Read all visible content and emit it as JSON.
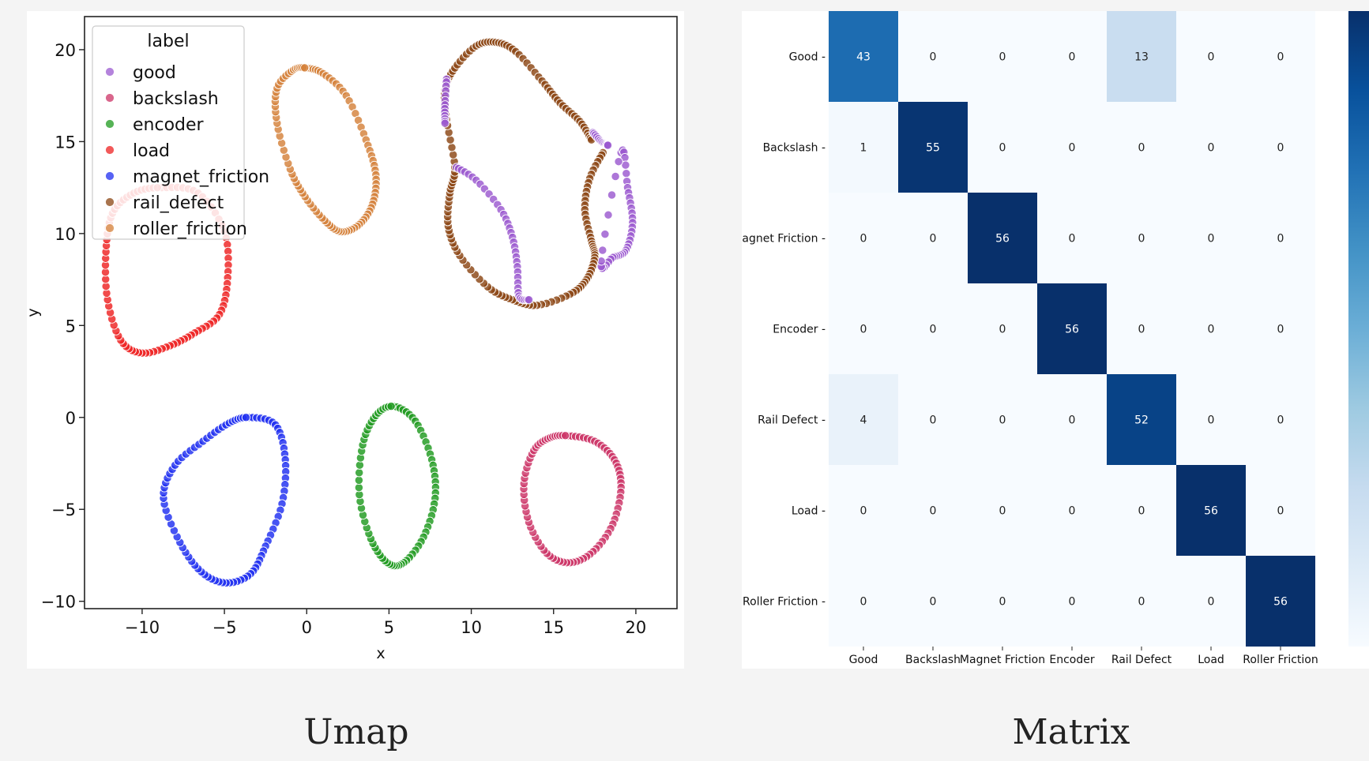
{
  "captions": {
    "left": "Umap",
    "right": "Matrix"
  },
  "chart_data": [
    {
      "type": "scatter",
      "title": "",
      "xlabel": "x",
      "ylabel": "y",
      "xlim": [
        -13.5,
        22.5
      ],
      "ylim": [
        -10.4,
        21.8
      ],
      "xticks": [
        -10,
        -5,
        0,
        5,
        10,
        15,
        20
      ],
      "xtick_labels": [
        "−10",
        "−5",
        "0",
        "5",
        "10",
        "15",
        "20"
      ],
      "yticks": [
        -10,
        -5,
        0,
        5,
        10,
        15,
        20
      ],
      "ytick_labels": [
        "−10",
        "−5",
        "0",
        "5",
        "10",
        "15",
        "20"
      ],
      "grid": false,
      "legend": {
        "title": "label",
        "placement": "top-left"
      },
      "series": [
        {
          "name": "good",
          "color": "#9b59d0",
          "shape": "ring",
          "points": [
            [
              19.1,
              14.4
            ],
            [
              19.5,
              12.5
            ],
            [
              19.8,
              10.6
            ],
            [
              19.4,
              9.1
            ],
            [
              18.6,
              8.7
            ],
            [
              17.9,
              8.5
            ]
          ]
        },
        {
          "name": "backslash",
          "color": "#cc3366",
          "shape": "ring",
          "points": [
            [
              15.9,
              -1.0
            ],
            [
              17.5,
              -1.3
            ],
            [
              18.7,
              -2.3
            ],
            [
              19.1,
              -3.8
            ],
            [
              18.6,
              -5.8
            ],
            [
              17.4,
              -7.3
            ],
            [
              16.0,
              -7.9
            ],
            [
              14.6,
              -7.4
            ],
            [
              13.5,
              -5.7
            ],
            [
              13.2,
              -3.6
            ],
            [
              13.8,
              -1.8
            ],
            [
              14.8,
              -1.1
            ]
          ]
        },
        {
          "name": "encoder",
          "color": "#1e9a1e",
          "shape": "ring",
          "points": [
            [
              5.3,
              0.6
            ],
            [
              6.6,
              -0.2
            ],
            [
              7.6,
              -2.3
            ],
            [
              7.8,
              -4.4
            ],
            [
              7.1,
              -6.5
            ],
            [
              5.9,
              -7.9
            ],
            [
              4.9,
              -7.9
            ],
            [
              3.9,
              -6.6
            ],
            [
              3.2,
              -4.2
            ],
            [
              3.4,
              -1.5
            ],
            [
              4.2,
              0.1
            ]
          ]
        },
        {
          "name": "load",
          "color": "#ee2222",
          "shape": "ring",
          "points": [
            [
              -8.8,
              12.5
            ],
            [
              -6.6,
              12.2
            ],
            [
              -5.0,
              10.1
            ],
            [
              -4.8,
              7.6
            ],
            [
              -5.3,
              5.6
            ],
            [
              -6.8,
              4.6
            ],
            [
              -8.3,
              3.9
            ],
            [
              -10.0,
              3.5
            ],
            [
              -11.3,
              4.2
            ],
            [
              -12.1,
              6.4
            ],
            [
              -12.2,
              9.0
            ],
            [
              -11.8,
              11.1
            ],
            [
              -10.5,
              12.2
            ]
          ]
        },
        {
          "name": "magnet_friction",
          "color": "#1f2ef0",
          "shape": "ring",
          "points": [
            [
              -3.5,
              0.0
            ],
            [
              -1.9,
              -0.4
            ],
            [
              -1.3,
              -2.3
            ],
            [
              -1.5,
              -4.7
            ],
            [
              -2.5,
              -7.0
            ],
            [
              -3.4,
              -8.5
            ],
            [
              -4.9,
              -9.0
            ],
            [
              -6.4,
              -8.4
            ],
            [
              -7.7,
              -6.8
            ],
            [
              -8.7,
              -4.4
            ],
            [
              -8.0,
              -2.6
            ],
            [
              -6.3,
              -1.3
            ],
            [
              -4.7,
              -0.3
            ]
          ]
        },
        {
          "name": "rail_defect",
          "color": "#8b4513",
          "shape": "curve",
          "points": [
            [
              18.0,
              14.4
            ],
            [
              17.2,
              13.0
            ],
            [
              16.9,
              11.3
            ],
            [
              17.3,
              9.6
            ],
            [
              17.5,
              8.7
            ],
            [
              17.0,
              7.5
            ],
            [
              16.0,
              6.7
            ],
            [
              14.0,
              6.1
            ],
            [
              12.5,
              6.4
            ],
            [
              11.0,
              7.1
            ],
            [
              9.3,
              8.8
            ],
            [
              8.6,
              10.4
            ],
            [
              8.7,
              12.2
            ],
            [
              9.0,
              13.6
            ],
            [
              8.5,
              16.2
            ],
            [
              8.4,
              17.8
            ],
            [
              9.0,
              19.0
            ],
            [
              10.3,
              20.2
            ],
            [
              11.5,
              20.4
            ],
            [
              12.7,
              19.9
            ],
            [
              14.3,
              18.3
            ],
            [
              15.4,
              17.1
            ],
            [
              16.6,
              16.1
            ],
            [
              17.3,
              15.1
            ]
          ]
        },
        {
          "name": "roller_friction",
          "color": "#d4813a",
          "shape": "ring",
          "points": [
            [
              0.0,
              19.0
            ],
            [
              1.0,
              18.7
            ],
            [
              2.4,
              17.5
            ],
            [
              3.6,
              15.1
            ],
            [
              4.2,
              13.2
            ],
            [
              4.0,
              11.6
            ],
            [
              3.2,
              10.5
            ],
            [
              2.1,
              10.1
            ],
            [
              1.1,
              10.7
            ],
            [
              -0.1,
              12.0
            ],
            [
              -1.0,
              13.5
            ],
            [
              -1.8,
              16.0
            ],
            [
              -1.8,
              17.9
            ],
            [
              -0.8,
              18.9
            ]
          ]
        }
      ],
      "overlays": [
        {
          "color": "#9b59d0",
          "points": [
            [
              9.1,
              13.6
            ],
            [
              10.3,
              12.9
            ],
            [
              11.8,
              11.3
            ],
            [
              12.5,
              9.8
            ],
            [
              12.8,
              8.2
            ],
            [
              12.9,
              6.6
            ],
            [
              13.5,
              6.4
            ]
          ]
        },
        {
          "color": "#9b59d0",
          "points": [
            [
              8.5,
              18.4
            ],
            [
              8.4,
              17.0
            ],
            [
              8.4,
              16.0
            ]
          ]
        },
        {
          "color": "#9b59d0",
          "points": [
            [
              17.4,
              15.5
            ],
            [
              17.9,
              15.0
            ],
            [
              18.3,
              14.8
            ]
          ]
        }
      ]
    },
    {
      "type": "heatmap",
      "title": "",
      "xlabel": "",
      "ylabel": "",
      "rows": [
        "Good",
        "Backslash",
        "Magnet Friction",
        "Encoder",
        "Rail Defect",
        "Load",
        "Roller Friction"
      ],
      "columns": [
        "Good",
        "Backslash",
        "Magnet Friction",
        "Encoder",
        "Rail Defect",
        "Load",
        "Roller Friction"
      ],
      "values": [
        [
          43,
          0,
          0,
          0,
          13,
          0,
          0
        ],
        [
          1,
          55,
          0,
          0,
          0,
          0,
          0
        ],
        [
          0,
          0,
          56,
          0,
          0,
          0,
          0
        ],
        [
          0,
          0,
          0,
          56,
          0,
          0,
          0
        ],
        [
          4,
          0,
          0,
          0,
          52,
          0,
          0
        ],
        [
          0,
          0,
          0,
          0,
          0,
          56,
          0
        ],
        [
          0,
          0,
          0,
          0,
          0,
          0,
          56
        ]
      ],
      "colormap": "Blues",
      "vmin": 0,
      "vmax": 56,
      "colorbar": true
    }
  ]
}
